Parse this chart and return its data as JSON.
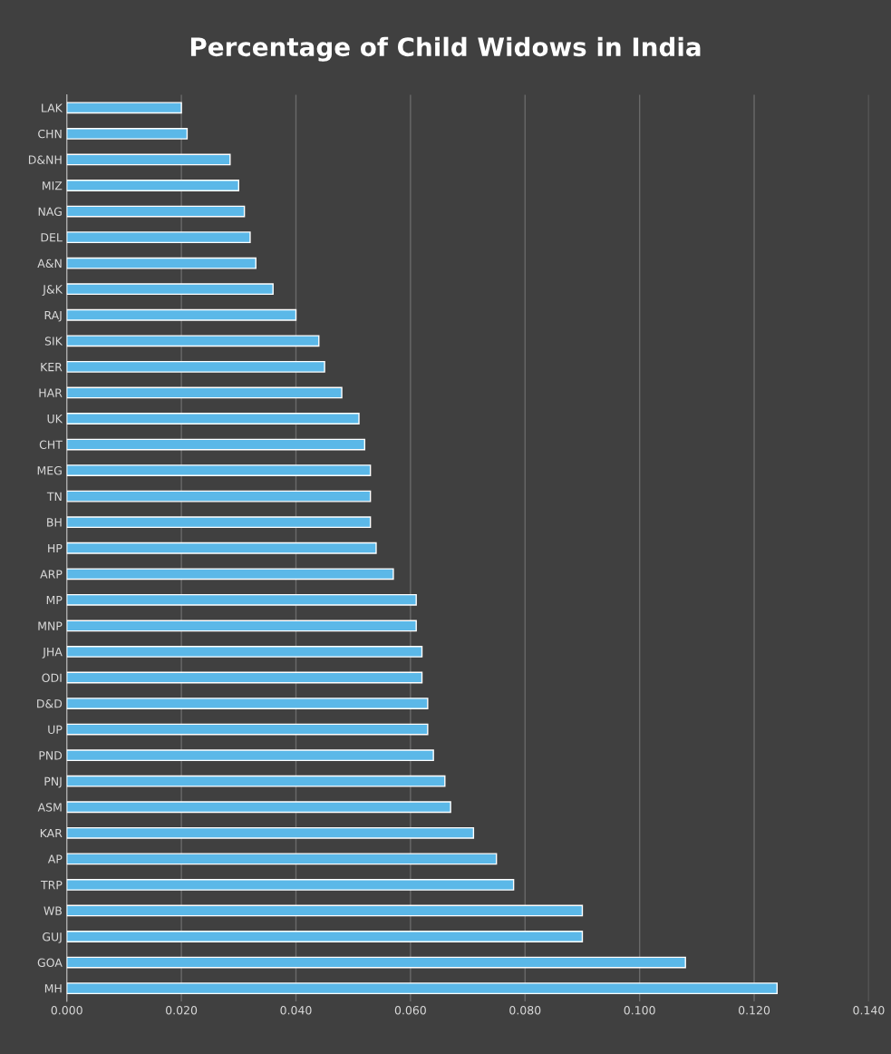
{
  "chart_data": {
    "type": "bar",
    "orientation": "horizontal",
    "title": "Percentage of Child Widows in India",
    "categories": [
      "LAK",
      "CHN",
      "D&NH",
      "MIZ",
      "NAG",
      "DEL",
      "A&N",
      "J&K",
      "RAJ",
      "SIK",
      "KER",
      "HAR",
      "UK",
      "CHT",
      "MEG",
      "TN",
      "BH",
      "HP",
      "ARP",
      "MP",
      "MNP",
      "JHA",
      "ODI",
      "D&D",
      "UP",
      "PND",
      "PNJ",
      "ASM",
      "KAR",
      "AP",
      "TRP",
      "WB",
      "GUJ",
      "GOA",
      "MH"
    ],
    "values": [
      0.02,
      0.021,
      0.0285,
      0.03,
      0.031,
      0.032,
      0.033,
      0.036,
      0.04,
      0.044,
      0.045,
      0.048,
      0.051,
      0.052,
      0.053,
      0.053,
      0.053,
      0.054,
      0.057,
      0.061,
      0.061,
      0.062,
      0.062,
      0.063,
      0.063,
      0.064,
      0.066,
      0.067,
      0.071,
      0.075,
      0.078,
      0.09,
      0.09,
      0.108,
      0.124
    ],
    "color": "#5bb8e8",
    "xlim": [
      0,
      0.14
    ],
    "xticks": [
      {
        "value": 0,
        "label": "0.000"
      },
      {
        "value": 0.02,
        "label": "0.020"
      },
      {
        "value": 0.04,
        "label": "0.040"
      },
      {
        "value": 0.06,
        "label": "0.060"
      },
      {
        "value": 0.08,
        "label": "0.080"
      },
      {
        "value": 0.1,
        "label": "0.100"
      },
      {
        "value": 0.12,
        "label": "0.120"
      },
      {
        "value": 0.14,
        "label": "0.140"
      }
    ],
    "grid": "x"
  }
}
